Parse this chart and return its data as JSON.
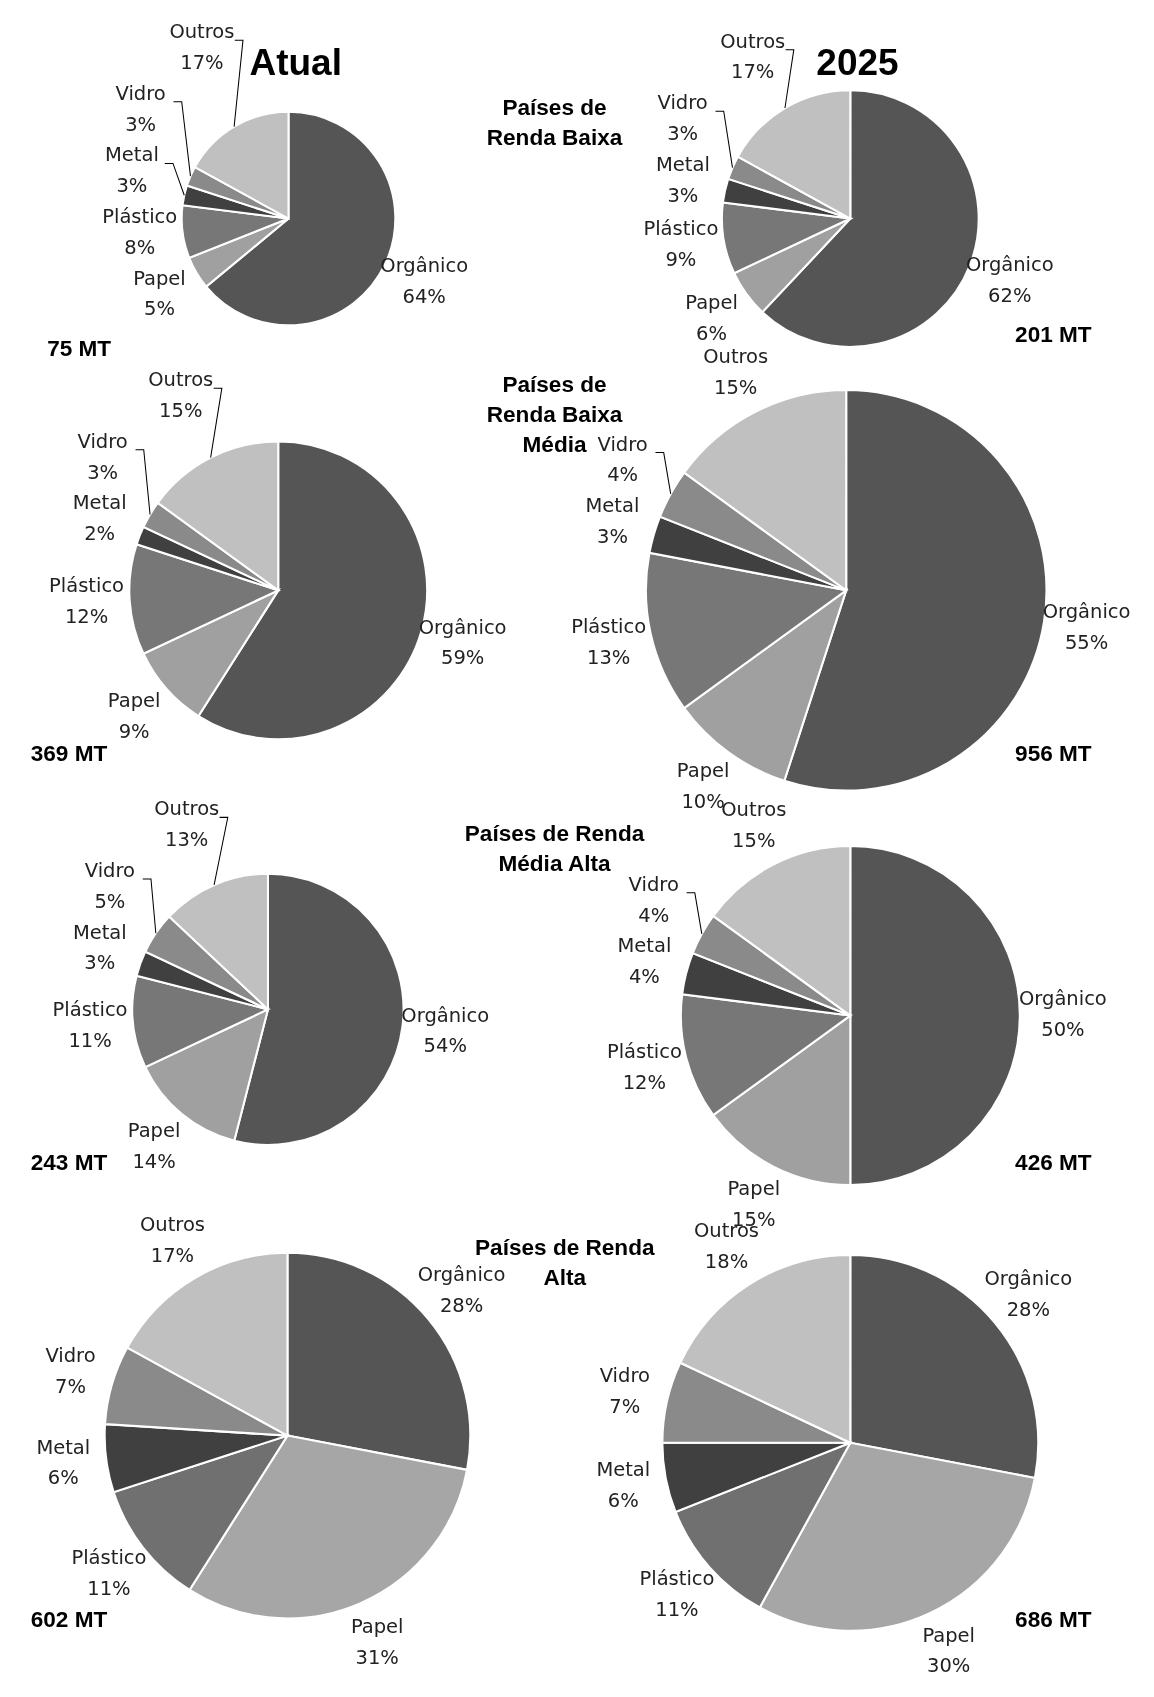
{
  "chart_data": [
    {
      "type": "pie",
      "title": "Atual",
      "categories": [
        "Orgânico",
        "Papel",
        "Plástico",
        "Metal",
        "Vidro",
        "Outros"
      ],
      "values": [
        64,
        5,
        8,
        3,
        3,
        17
      ],
      "value_labels": [
        "64%",
        "5%",
        "8%",
        "3%",
        "3%",
        "17%"
      ],
      "colors": [
        "#555555",
        "#a0a0a0",
        "#777777",
        "#404040",
        "#8a8a8a",
        "#c0c0c0"
      ],
      "annotations": [
        "75 MT"
      ]
    },
    {
      "type": "pie",
      "title": "2025",
      "subtitle": "Países de Renda Baixa",
      "categories": [
        "Orgânico",
        "Papel",
        "Plástico",
        "Metal",
        "Vidro",
        "Outros"
      ],
      "values": [
        62,
        6,
        9,
        3,
        3,
        17
      ],
      "value_labels": [
        "62%",
        "6%",
        "9%",
        "3%",
        "3%",
        "17%"
      ],
      "colors": [
        "#555555",
        "#a0a0a0",
        "#777777",
        "#404040",
        "#8a8a8a",
        "#c0c0c0"
      ],
      "annotations": [
        "201 MT"
      ]
    },
    {
      "type": "pie",
      "categories": [
        "Orgânico",
        "Papel",
        "Plástico",
        "Metal",
        "Vidro",
        "Outros"
      ],
      "values": [
        59,
        9,
        12,
        2,
        3,
        15
      ],
      "value_labels": [
        "59%",
        "9%",
        "12%",
        "2%",
        "3%",
        "15%"
      ],
      "colors": [
        "#555555",
        "#a0a0a0",
        "#777777",
        "#404040",
        "#8a8a8a",
        "#c0c0c0"
      ],
      "annotations": [
        "369 MT"
      ]
    },
    {
      "type": "pie",
      "subtitle": "Países de Renda Baixa Média",
      "categories": [
        "Orgânico",
        "Papel",
        "Plástico",
        "Metal",
        "Vidro",
        "Outros"
      ],
      "values": [
        55,
        10,
        13,
        3,
        4,
        15
      ],
      "value_labels": [
        "55%",
        "10%",
        "13%",
        "3%",
        "4%",
        "15%"
      ],
      "colors": [
        "#555555",
        "#a0a0a0",
        "#777777",
        "#404040",
        "#8a8a8a",
        "#c0c0c0"
      ],
      "annotations": [
        "956 MT"
      ]
    },
    {
      "type": "pie",
      "categories": [
        "Orgânico",
        "Papel",
        "Plástico",
        "Metal",
        "Vidro",
        "Outros"
      ],
      "values": [
        54,
        14,
        11,
        3,
        5,
        13
      ],
      "value_labels": [
        "54%",
        "14%",
        "11%",
        "3%",
        "5%",
        "13%"
      ],
      "colors": [
        "#555555",
        "#a0a0a0",
        "#777777",
        "#404040",
        "#8a8a8a",
        "#c0c0c0"
      ],
      "annotations": [
        "243 MT"
      ]
    },
    {
      "type": "pie",
      "subtitle": "Países de Renda Média Alta",
      "categories": [
        "Orgânico",
        "Papel",
        "Plástico",
        "Metal",
        "Vidro",
        "Outros"
      ],
      "values": [
        50,
        15,
        12,
        4,
        4,
        15
      ],
      "value_labels": [
        "50%",
        "15%",
        "12%",
        "4%",
        "4%",
        "15%"
      ],
      "colors": [
        "#555555",
        "#a0a0a0",
        "#777777",
        "#404040",
        "#8a8a8a",
        "#c0c0c0"
      ],
      "annotations": [
        "426 MT"
      ]
    },
    {
      "type": "pie",
      "categories": [
        "Orgânico",
        "Papel",
        "Plástico",
        "Metal",
        "Vidro",
        "Outros"
      ],
      "values": [
        28,
        31,
        11,
        6,
        7,
        17
      ],
      "value_labels": [
        "28%",
        "31%",
        "11%",
        "6%",
        "7%",
        "17%"
      ],
      "colors": [
        "#555555",
        "#a6a6a6",
        "#707070",
        "#404040",
        "#8a8a8a",
        "#c0c0c0"
      ],
      "annotations": [
        "602 MT"
      ]
    },
    {
      "type": "pie",
      "subtitle": "Países de Renda Alta",
      "categories": [
        "Orgânico",
        "Papel",
        "Plástico",
        "Metal",
        "Vidro",
        "Outros"
      ],
      "values": [
        28,
        30,
        11,
        6,
        7,
        18
      ],
      "value_labels": [
        "28%",
        "30%",
        "11%",
        "6%",
        "7%",
        "18%"
      ],
      "colors": [
        "#555555",
        "#a6a6a6",
        "#707070",
        "#404040",
        "#8a8a8a",
        "#c0c0c0"
      ],
      "annotations": [
        "686 MT"
      ]
    }
  ]
}
